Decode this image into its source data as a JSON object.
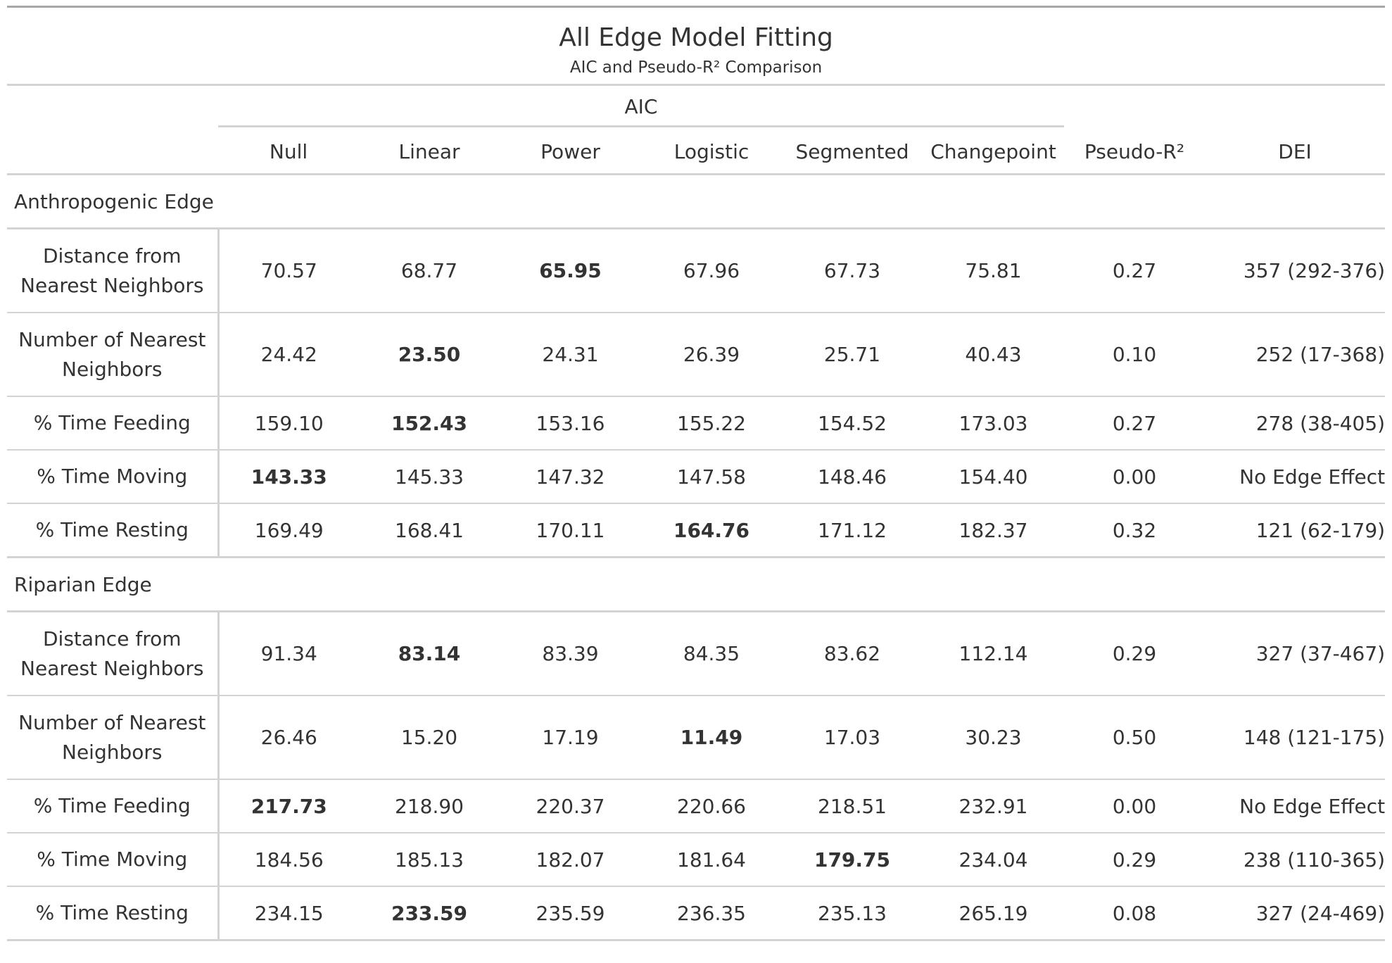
{
  "title": "All Edge Model Fitting",
  "subtitle": "AIC and Pseudo-R² Comparison",
  "spanner": "AIC",
  "columns": [
    "Null",
    "Linear",
    "Power",
    "Logistic",
    "Segmented",
    "Changepoint",
    "Pseudo-R²",
    "DEI"
  ],
  "groups": [
    {
      "name": "Anthropogenic Edge",
      "rows": [
        {
          "label": "Distance from Nearest Neighbors",
          "values": [
            "70.57",
            "68.77",
            "65.95",
            "67.96",
            "67.73",
            "75.81",
            "0.27",
            "357 (292-376)"
          ],
          "bold_index": 2
        },
        {
          "label": "Number of Nearest Neighbors",
          "values": [
            "24.42",
            "23.50",
            "24.31",
            "26.39",
            "25.71",
            "40.43",
            "0.10",
            "252 (17-368)"
          ],
          "bold_index": 1
        },
        {
          "label": "% Time Feeding",
          "values": [
            "159.10",
            "152.43",
            "153.16",
            "155.22",
            "154.52",
            "173.03",
            "0.27",
            "278 (38-405)"
          ],
          "bold_index": 1
        },
        {
          "label": "% Time Moving",
          "values": [
            "143.33",
            "145.33",
            "147.32",
            "147.58",
            "148.46",
            "154.40",
            "0.00",
            "No Edge Effect"
          ],
          "bold_index": 0
        },
        {
          "label": "% Time Resting",
          "values": [
            "169.49",
            "168.41",
            "170.11",
            "164.76",
            "171.12",
            "182.37",
            "0.32",
            "121 (62-179)"
          ],
          "bold_index": 3
        }
      ]
    },
    {
      "name": "Riparian Edge",
      "rows": [
        {
          "label": "Distance from Nearest Neighbors",
          "values": [
            "91.34",
            "83.14",
            "83.39",
            "84.35",
            "83.62",
            "112.14",
            "0.29",
            "327 (37-467)"
          ],
          "bold_index": 1
        },
        {
          "label": "Number of Nearest Neighbors",
          "values": [
            "26.46",
            "15.20",
            "17.19",
            "11.49",
            "17.03",
            "30.23",
            "0.50",
            "148 (121-175)"
          ],
          "bold_index": 3
        },
        {
          "label": "% Time Feeding",
          "values": [
            "217.73",
            "218.90",
            "220.37",
            "220.66",
            "218.51",
            "232.91",
            "0.00",
            "No Edge Effect"
          ],
          "bold_index": 0
        },
        {
          "label": "% Time Moving",
          "values": [
            "184.56",
            "185.13",
            "182.07",
            "181.64",
            "179.75",
            "234.04",
            "0.29",
            "238 (110-365)"
          ],
          "bold_index": 4
        },
        {
          "label": "% Time Resting",
          "values": [
            "234.15",
            "233.59",
            "235.59",
            "236.35",
            "235.13",
            "265.19",
            "0.08",
            "327 (24-469)"
          ],
          "bold_index": 1
        }
      ]
    }
  ]
}
